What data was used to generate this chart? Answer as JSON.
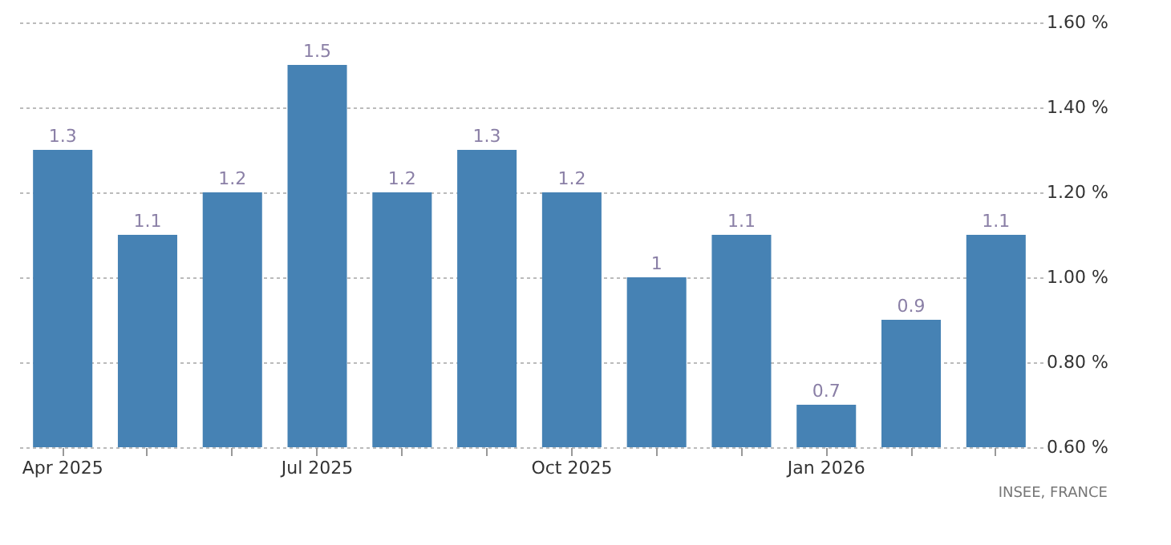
{
  "chart_data": {
    "type": "bar",
    "categories": [
      "Apr 2025",
      null,
      null,
      "Jul 2025",
      null,
      null,
      "Oct 2025",
      null,
      null,
      "Jan 2026",
      null,
      null
    ],
    "values": [
      1.3,
      1.1,
      1.2,
      1.5,
      1.2,
      1.3,
      1.2,
      1.0,
      1.1,
      0.7,
      0.9,
      1.1
    ],
    "color": "#4682b4",
    "ylim": [
      0.6,
      1.6
    ],
    "yticks": [
      {
        "value": 0.6,
        "label": "0.60 %"
      },
      {
        "value": 0.8,
        "label": "0.80 %"
      },
      {
        "value": 1.0,
        "label": "1.00 %"
      },
      {
        "value": 1.2,
        "label": "1.20 %"
      },
      {
        "value": 1.4,
        "label": "1.40 %"
      },
      {
        "value": 1.6,
        "label": "1.60 %"
      }
    ],
    "grid": "y",
    "data_labels": true,
    "annotations": [
      "INSEE, FRANCE"
    ]
  }
}
